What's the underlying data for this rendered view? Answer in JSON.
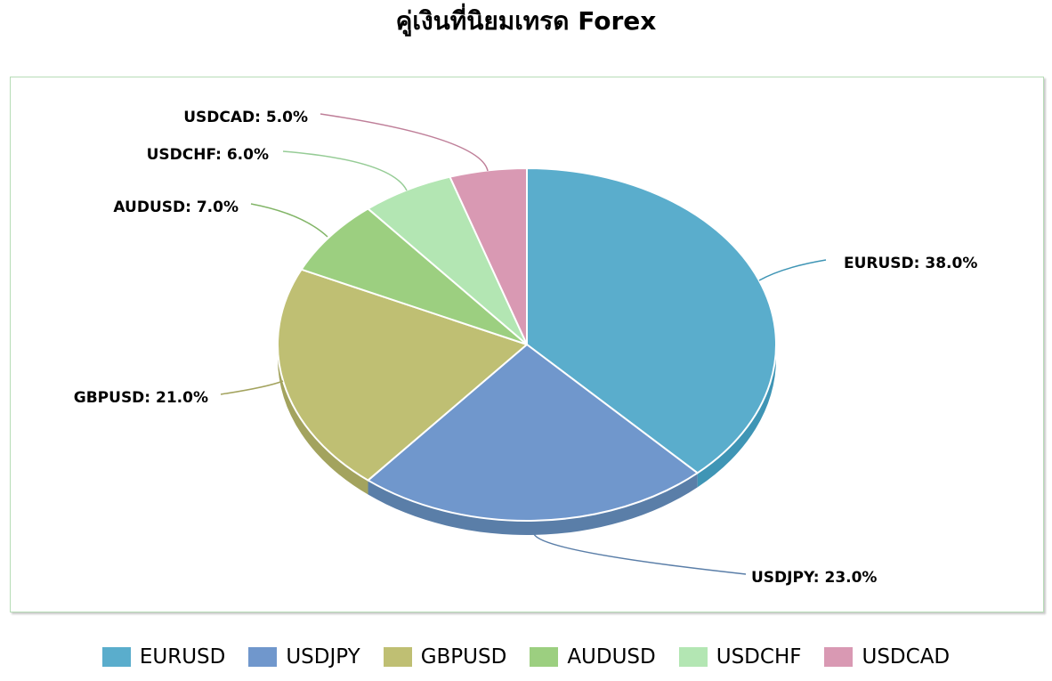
{
  "chart_data": {
    "type": "pie",
    "title": "คู่เงินที่นิยมเทรด Forex",
    "slices": [
      {
        "name": "EURUSD",
        "value": 38.0,
        "label": "EURUSD: 38.0%",
        "color": "#5aadcc",
        "side_color": "#3f95b5"
      },
      {
        "name": "USDJPY",
        "value": 23.0,
        "label": "USDJPY: 23.0%",
        "color": "#7097cc",
        "side_color": "#5a7ea8"
      },
      {
        "name": "GBPUSD",
        "value": 21.0,
        "label": "GBPUSD: 21.0%",
        "color": "#bfbf73",
        "side_color": "#a3a35e"
      },
      {
        "name": "AUDUSD",
        "value": 7.0,
        "label": "AUDUSD: 7.0%",
        "color": "#9ccf80",
        "side_color": "#82b567"
      },
      {
        "name": "USDCHF",
        "value": 6.0,
        "label": "USDCHF: 6.0%",
        "color": "#b3e6b3",
        "side_color": "#96cc96"
      },
      {
        "name": "USDCAD",
        "value": 5.0,
        "label": "USDCAD: 5.0%",
        "color": "#d999b3",
        "side_color": "#bf7f99"
      }
    ],
    "legend_position": "bottom"
  }
}
